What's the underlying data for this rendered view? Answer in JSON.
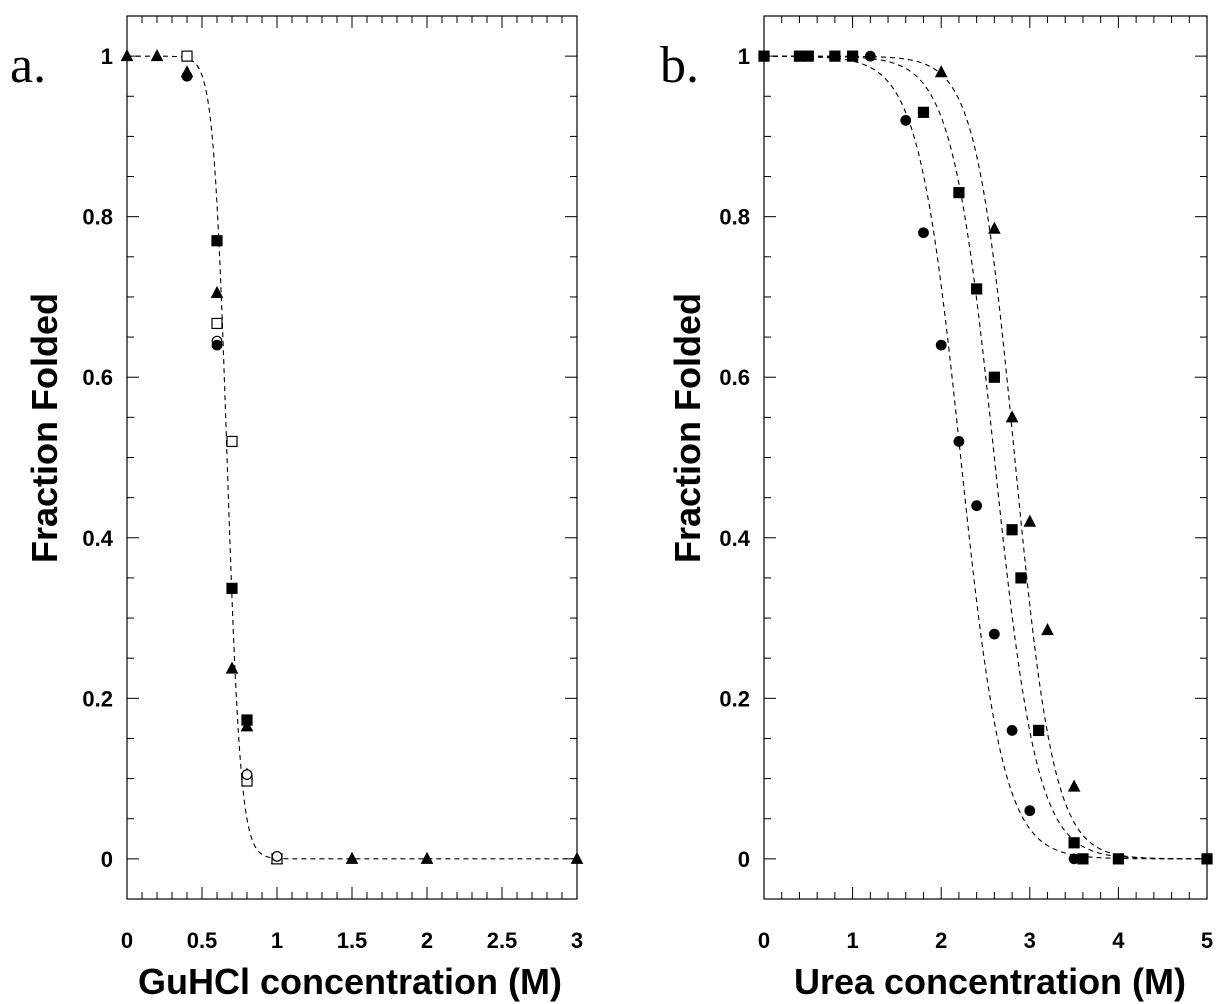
{
  "chart_data": [
    {
      "type": "scatter",
      "panel_label": "a.",
      "xlabel": "GuHCl concentration (M)",
      "ylabel": "Fraction Folded",
      "xlim": [
        0,
        3
      ],
      "ylim": [
        -0.05,
        1.05
      ],
      "x_ticks": [
        "0",
        "0.5",
        "1",
        "1.5",
        "2",
        "2.5",
        "3"
      ],
      "y_ticks": [
        "0",
        "0.2",
        "0.4",
        "0.6",
        "0.8",
        "1"
      ],
      "series": [
        {
          "marker": "filled-triangle",
          "x": [
            0,
            0.2,
            0.4,
            0.6,
            0.7,
            0.8,
            0.8,
            1.0,
            1.5,
            2.0,
            3.0
          ],
          "y": [
            1.0,
            1.0,
            0.98,
            0.705,
            0.237,
            0.165,
            0.105,
            0.0,
            0.0,
            0.0,
            0.0
          ]
        },
        {
          "marker": "filled-square",
          "x": [
            0.6,
            0.7,
            0.8
          ],
          "y": [
            0.77,
            0.337,
            0.173
          ]
        },
        {
          "marker": "open-square",
          "x": [
            0.4,
            0.6,
            0.7,
            0.8,
            1.0
          ],
          "y": [
            1.0,
            0.667,
            0.52,
            0.097,
            0.0
          ]
        },
        {
          "marker": "open-circle",
          "x": [
            0.6,
            0.8,
            1.0
          ],
          "y": [
            0.645,
            0.105,
            0.003
          ]
        },
        {
          "marker": "filled-circle",
          "x": [
            0.4,
            0.6
          ],
          "y": [
            0.975,
            0.64
          ]
        }
      ],
      "fits": [
        {
          "style": "dashed",
          "midpoint": 0.667,
          "width": 0.045,
          "x_range": [
            0,
            3
          ]
        }
      ]
    },
    {
      "type": "scatter",
      "panel_label": "b.",
      "xlabel": "Urea concentration (M)",
      "ylabel": "Fraction Folded",
      "xlim": [
        0,
        5
      ],
      "ylim": [
        -0.05,
        1.05
      ],
      "x_ticks": [
        "0",
        "1",
        "2",
        "3",
        "4",
        "5"
      ],
      "y_ticks": [
        "0",
        "0.2",
        "0.4",
        "0.6",
        "0.8",
        "1"
      ],
      "series": [
        {
          "marker": "filled-circle",
          "x": [
            1.2,
            1.6,
            1.8,
            2.0,
            2.2,
            2.4,
            2.6,
            2.8,
            3.0,
            3.5
          ],
          "y": [
            1.0,
            0.92,
            0.78,
            0.64,
            0.52,
            0.44,
            0.28,
            0.16,
            0.06,
            0.0
          ]
        },
        {
          "marker": "filled-square",
          "x": [
            0,
            0.4,
            0.5,
            0.8,
            1.0,
            1.8,
            2.2,
            2.4,
            2.6,
            2.8,
            2.9,
            3.1,
            3.5,
            3.6,
            4.0,
            5.0
          ],
          "y": [
            1.0,
            1.0,
            1.0,
            1.0,
            1.0,
            0.93,
            0.83,
            0.71,
            0.6,
            0.41,
            0.35,
            0.16,
            0.02,
            0.0,
            0.0,
            0.0
          ]
        },
        {
          "marker": "filled-triangle",
          "x": [
            2.0,
            2.6,
            2.8,
            3.0,
            3.2,
            3.5
          ],
          "y": [
            0.98,
            0.785,
            0.55,
            0.42,
            0.285,
            0.09
          ]
        }
      ],
      "fits": [
        {
          "style": "dashed",
          "midpoint": 2.22,
          "width": 0.24,
          "x_range": [
            0,
            5
          ]
        },
        {
          "style": "dashed",
          "midpoint": 2.6,
          "width": 0.24,
          "x_range": [
            0,
            5
          ]
        },
        {
          "style": "dashed",
          "midpoint": 2.83,
          "width": 0.22,
          "x_range": [
            0,
            5
          ]
        }
      ]
    }
  ]
}
